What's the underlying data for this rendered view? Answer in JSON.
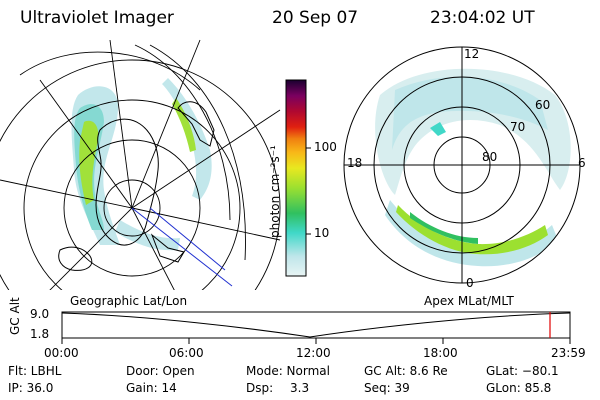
{
  "header": {
    "title": "Ultraviolet Imager",
    "date": "20 Sep 07",
    "time": "23:04:02 UT"
  },
  "colorbar": {
    "unit": "photon cm⁻²s⁻¹",
    "ticks": [
      "100",
      "10"
    ],
    "scale": "log"
  },
  "polar_plot": {
    "lat_labels": [
      "80",
      "70",
      "60"
    ],
    "mlt_labels": [
      "12",
      "18",
      "6",
      "0"
    ]
  },
  "map_labels": {
    "left": "Geographic Lat/Lon",
    "right": "Apex MLat/MLT"
  },
  "timeline": {
    "ylabel": "GC Alt",
    "yticks": [
      "9.0",
      "1.8"
    ],
    "xticks": [
      "00:00",
      "06:00",
      "12:00",
      "18:00",
      "23:59"
    ],
    "current_marker_color": "#e00000"
  },
  "info": {
    "filter": "Flt: LBHL",
    "ip": "IP: 36.0",
    "door": "Door: Open",
    "gain": "Gain: 14",
    "mode": "Mode: Normal",
    "dsp_label": "Dsp:",
    "dsp_value": "3.3",
    "gc_alt": "GC Alt: 8.6 Re",
    "seq": "Seq: 39",
    "glat": "GLat: −80.1",
    "glon": "GLon:  85.8"
  }
}
